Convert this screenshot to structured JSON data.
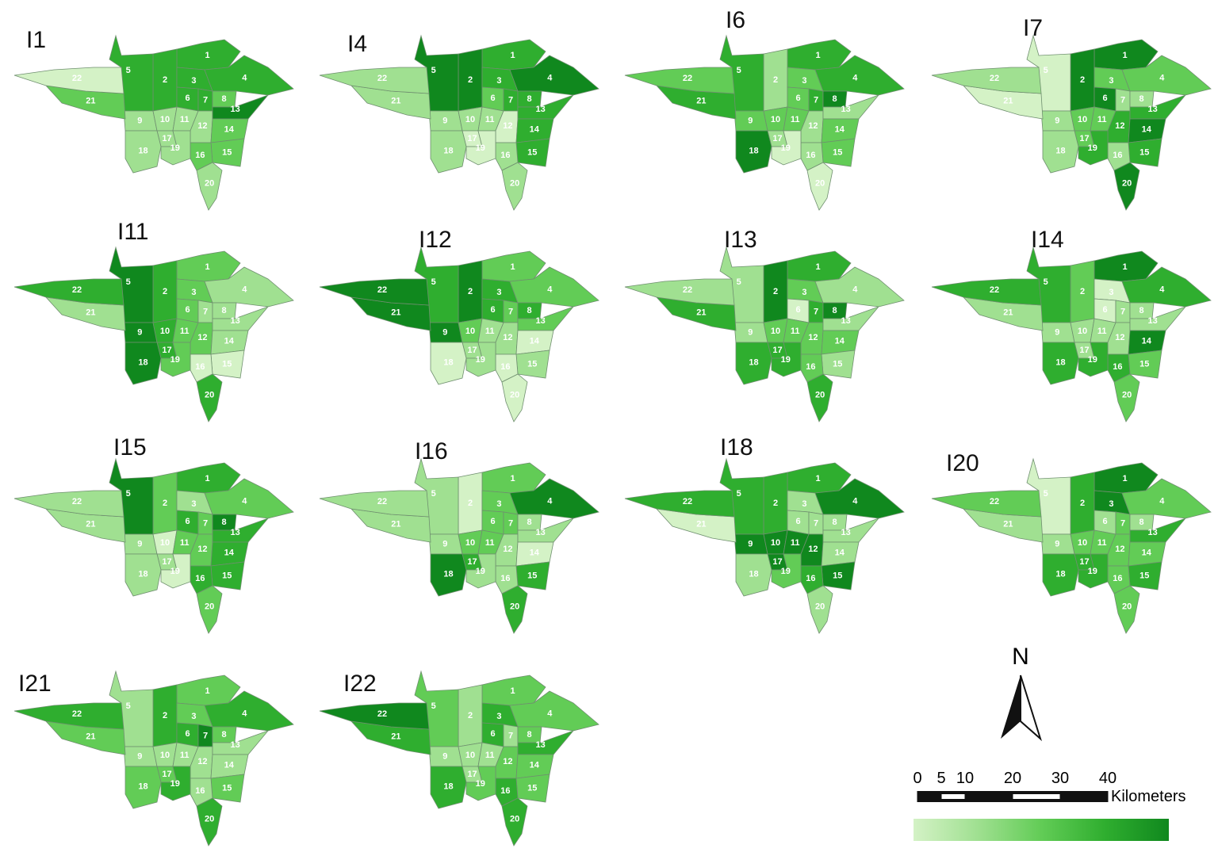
{
  "panels": [
    {
      "title": "I1",
      "levels": [
        3,
        3,
        3,
        3,
        3,
        3,
        3,
        2,
        1,
        1,
        1,
        1,
        4,
        2,
        2,
        2,
        1,
        1,
        1,
        1,
        2,
        0
      ]
    },
    {
      "title": "I4",
      "levels": [
        3,
        4,
        3,
        4,
        4,
        2,
        3,
        3,
        1,
        1,
        1,
        0,
        3,
        3,
        3,
        1,
        0,
        1,
        0,
        1,
        1,
        1
      ]
    },
    {
      "title": "I6",
      "levels": [
        3,
        1,
        2,
        3,
        3,
        2,
        3,
        4,
        2,
        2,
        2,
        1,
        1,
        2,
        2,
        1,
        1,
        4,
        0,
        0,
        3,
        2
      ]
    },
    {
      "title": "I7",
      "levels": [
        4,
        4,
        2,
        2,
        0,
        4,
        1,
        1,
        1,
        2,
        2,
        3,
        3,
        4,
        3,
        1,
        2,
        1,
        3,
        4,
        0,
        1
      ]
    },
    {
      "title": "I11",
      "levels": [
        2,
        3,
        2,
        1,
        4,
        2,
        1,
        1,
        4,
        3,
        2,
        2,
        1,
        1,
        0,
        0,
        3,
        4,
        2,
        3,
        1,
        3
      ]
    },
    {
      "title": "I12",
      "levels": [
        2,
        4,
        3,
        2,
        3,
        3,
        2,
        3,
        4,
        2,
        1,
        1,
        2,
        0,
        1,
        0,
        1,
        0,
        1,
        0,
        4,
        4
      ]
    },
    {
      "title": "I13",
      "levels": [
        3,
        4,
        2,
        1,
        1,
        0,
        3,
        4,
        1,
        2,
        2,
        2,
        1,
        2,
        1,
        2,
        3,
        3,
        3,
        3,
        3,
        1
      ]
    },
    {
      "title": "I14",
      "levels": [
        4,
        2,
        0,
        3,
        3,
        0,
        1,
        1,
        1,
        1,
        1,
        1,
        1,
        4,
        2,
        3,
        1,
        3,
        3,
        2,
        1,
        3
      ]
    },
    {
      "title": "I15",
      "levels": [
        3,
        2,
        1,
        2,
        4,
        3,
        2,
        4,
        1,
        0,
        2,
        2,
        3,
        3,
        3,
        3,
        1,
        1,
        0,
        2,
        1,
        1
      ]
    },
    {
      "title": "I16",
      "levels": [
        2,
        0,
        2,
        4,
        1,
        2,
        2,
        1,
        1,
        2,
        2,
        1,
        1,
        0,
        3,
        1,
        3,
        4,
        1,
        3,
        1,
        1
      ]
    },
    {
      "title": "I18",
      "levels": [
        3,
        3,
        1,
        4,
        3,
        1,
        1,
        1,
        4,
        4,
        4,
        4,
        1,
        1,
        4,
        3,
        4,
        1,
        2,
        1,
        0,
        3
      ]
    },
    {
      "title": "I20",
      "levels": [
        4,
        3,
        4,
        2,
        0,
        1,
        2,
        1,
        1,
        2,
        2,
        2,
        3,
        2,
        3,
        2,
        3,
        3,
        3,
        2,
        1,
        2
      ]
    },
    {
      "title": "I21",
      "levels": [
        2,
        3,
        2,
        3,
        1,
        3,
        4,
        2,
        1,
        1,
        1,
        1,
        1,
        1,
        2,
        1,
        2,
        2,
        3,
        3,
        2,
        3
      ]
    },
    {
      "title": "I22",
      "levels": [
        2,
        1,
        3,
        2,
        2,
        3,
        1,
        2,
        1,
        1,
        1,
        2,
        3,
        2,
        2,
        3,
        1,
        3,
        2,
        3,
        3,
        4
      ]
    }
  ],
  "districts": [
    "1",
    "2",
    "3",
    "4",
    "5",
    "6",
    "7",
    "8",
    "9",
    "10",
    "11",
    "12",
    "13",
    "14",
    "15",
    "16",
    "17",
    "18",
    "19",
    "20",
    "21",
    "22"
  ],
  "palette": [
    "#d4f2c6",
    "#a0e091",
    "#62cc56",
    "#2fae2f",
    "#10881e"
  ],
  "north": "N",
  "scale": {
    "ticks": [
      0,
      5,
      10,
      20,
      30,
      40
    ],
    "unit": "Kilometers"
  }
}
